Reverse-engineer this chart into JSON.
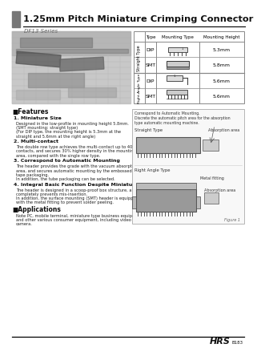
{
  "title": "1.25mm Pitch Miniature Crimping Connector",
  "series": "DF13 Series",
  "bg_color": "#ffffff",
  "header_bar_color": "#777777",
  "hrs_text": "HRS",
  "page_num": "B183",
  "features": [
    {
      "num": "1.",
      "bold": "Miniature Size",
      "text": "Designed in the low-profile in mounting height 5.8mm.\n(SMT mounting: straight type)\n(For DIP type, the mounting height is 5.3mm at the\nstraight and 5.6mm at the right angle)"
    },
    {
      "num": "2.",
      "bold": "Multi-contact",
      "text": "The double row type achieves the multi-contact up to 40\ncontacts, and secures 30% higher density in the mounting\narea, compared with the single row type."
    },
    {
      "num": "3.",
      "bold": "Correspond to Automatic Mounting",
      "text": "The header provides the grade with the vacuum absorption\narea, and secures automatic mounting by the embossed\ntape packaging.\nIn addition, the tube packaging can be selected."
    },
    {
      "num": "4.",
      "bold": "Integral Basic Function Despite Miniature Size",
      "text": "The header is designed in a scoop-proof box structure, and\ncompletely prevents mis-insertion.\nIn addition, the surface mounting (SMT) header is equipped\nwith the metal fitting to prevent solder peeling."
    }
  ],
  "applications_text": "Note PC, mobile terminal, miniature type business equipment,\nand other various consumer equipment, including video\ncamera.",
  "type_labels": [
    "DIP",
    "SMT",
    "DIP",
    "SMT"
  ],
  "height_labels": [
    "5.3mm",
    "5.8mm",
    "",
    "5.6mm"
  ],
  "row_group_labels": [
    "Straight Type",
    "Right-Angle Type"
  ]
}
